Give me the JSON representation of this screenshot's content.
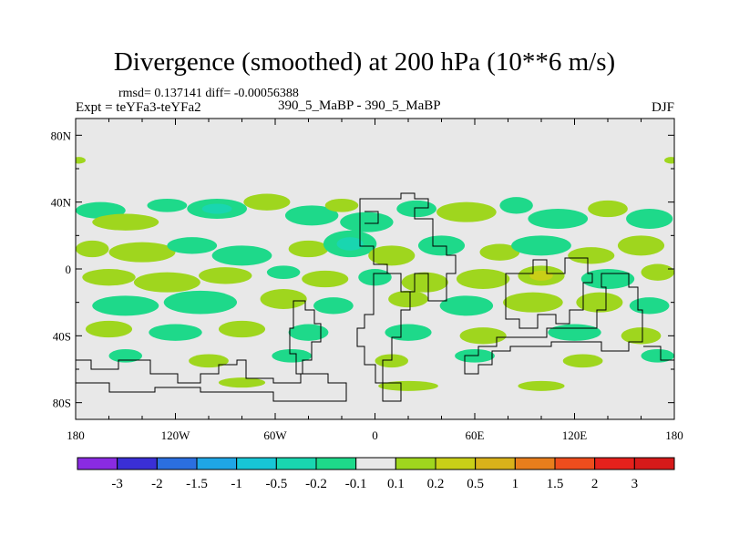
{
  "chart_data": {
    "type": "heatmap",
    "title": "Divergence (smoothed) at 200 hPa (10**6 m/s)",
    "stats": "rmsd= 0.137141 diff= -0.00056388",
    "expt": "Expt = teYFa3-teYFa2",
    "cases": "390_5_MaBP - 390_5_MaBP",
    "season": "DJF",
    "x_axis": {
      "range": [
        -180,
        180
      ],
      "ticks": [
        -180,
        -120,
        -60,
        0,
        60,
        120,
        180
      ],
      "tick_labels": [
        "180",
        "120W",
        "60W",
        "0",
        "60E",
        "120E",
        "180"
      ]
    },
    "y_axis": {
      "range": [
        -90,
        90
      ],
      "ticks": [
        80,
        40,
        0,
        -40,
        -80
      ],
      "tick_labels": [
        "80N",
        "40N",
        "0",
        "40S",
        "80S"
      ]
    },
    "colorbar": {
      "labels": [
        "-3",
        "-2",
        "-1.5",
        "-1",
        "-0.5",
        "-0.2",
        "-0.1",
        "0.1",
        "0.2",
        "0.5",
        "1",
        "1.5",
        "2",
        "3"
      ],
      "colors": [
        "#8a2be2",
        "#3a2fd6",
        "#2b6fe0",
        "#1fa6e6",
        "#17c6d6",
        "#19d6b0",
        "#1ed98a",
        "#e8e8e8",
        "#9fd61e",
        "#c9cf17",
        "#d9b21a",
        "#e87e1c",
        "#ee4d1d",
        "#e5211c",
        "#d61a1a"
      ]
    },
    "field_blobs": [
      {
        "lon": -165,
        "lat": 35,
        "rx": 15,
        "ry": 5,
        "v": -0.3
      },
      {
        "lon": -150,
        "lat": 28,
        "rx": 20,
        "ry": 5,
        "v": 0.3
      },
      {
        "lon": -125,
        "lat": 38,
        "rx": 12,
        "ry": 4,
        "v": -0.3
      },
      {
        "lon": -95,
        "lat": 36,
        "rx": 18,
        "ry": 6,
        "v": -0.4
      },
      {
        "lon": -65,
        "lat": 40,
        "rx": 14,
        "ry": 5,
        "v": 0.3
      },
      {
        "lon": -38,
        "lat": 32,
        "rx": 16,
        "ry": 6,
        "v": -0.3
      },
      {
        "lon": -20,
        "lat": 38,
        "rx": 10,
        "ry": 4,
        "v": 0.3
      },
      {
        "lon": -5,
        "lat": 28,
        "rx": 16,
        "ry": 6,
        "v": -0.3
      },
      {
        "lon": 25,
        "lat": 36,
        "rx": 12,
        "ry": 5,
        "v": -0.3
      },
      {
        "lon": 55,
        "lat": 34,
        "rx": 18,
        "ry": 6,
        "v": 0.3
      },
      {
        "lon": 85,
        "lat": 38,
        "rx": 10,
        "ry": 5,
        "v": -0.3
      },
      {
        "lon": 110,
        "lat": 30,
        "rx": 18,
        "ry": 6,
        "v": -0.3
      },
      {
        "lon": 140,
        "lat": 36,
        "rx": 12,
        "ry": 5,
        "v": 0.3
      },
      {
        "lon": 165,
        "lat": 30,
        "rx": 14,
        "ry": 6,
        "v": -0.3
      },
      {
        "lon": -170,
        "lat": 12,
        "rx": 10,
        "ry": 5,
        "v": 0.3
      },
      {
        "lon": -140,
        "lat": 10,
        "rx": 20,
        "ry": 6,
        "v": 0.3
      },
      {
        "lon": -110,
        "lat": 14,
        "rx": 15,
        "ry": 5,
        "v": -0.3
      },
      {
        "lon": -80,
        "lat": 8,
        "rx": 18,
        "ry": 6,
        "v": -0.3
      },
      {
        "lon": -40,
        "lat": 12,
        "rx": 12,
        "ry": 5,
        "v": 0.3
      },
      {
        "lon": -15,
        "lat": 15,
        "rx": 16,
        "ry": 8,
        "v": -0.4
      },
      {
        "lon": 10,
        "lat": 8,
        "rx": 14,
        "ry": 6,
        "v": 0.3
      },
      {
        "lon": 40,
        "lat": 14,
        "rx": 14,
        "ry": 6,
        "v": -0.3
      },
      {
        "lon": 75,
        "lat": 10,
        "rx": 12,
        "ry": 5,
        "v": 0.3
      },
      {
        "lon": 100,
        "lat": 14,
        "rx": 18,
        "ry": 6,
        "v": -0.3
      },
      {
        "lon": 130,
        "lat": 8,
        "rx": 14,
        "ry": 5,
        "v": 0.3
      },
      {
        "lon": 160,
        "lat": 14,
        "rx": 14,
        "ry": 6,
        "v": 0.3
      },
      {
        "lon": -160,
        "lat": -5,
        "rx": 16,
        "ry": 5,
        "v": 0.3
      },
      {
        "lon": -125,
        "lat": -8,
        "rx": 20,
        "ry": 6,
        "v": 0.3
      },
      {
        "lon": -90,
        "lat": -4,
        "rx": 16,
        "ry": 5,
        "v": 0.3
      },
      {
        "lon": -55,
        "lat": -2,
        "rx": 10,
        "ry": 4,
        "v": -0.3
      },
      {
        "lon": -30,
        "lat": -6,
        "rx": 14,
        "ry": 5,
        "v": 0.3
      },
      {
        "lon": 0,
        "lat": -5,
        "rx": 10,
        "ry": 5,
        "v": -0.3
      },
      {
        "lon": 30,
        "lat": -8,
        "rx": 14,
        "ry": 6,
        "v": 0.3
      },
      {
        "lon": 65,
        "lat": -6,
        "rx": 16,
        "ry": 6,
        "v": 0.3
      },
      {
        "lon": 100,
        "lat": -4,
        "rx": 14,
        "ry": 6,
        "v": 0.4
      },
      {
        "lon": 140,
        "lat": -6,
        "rx": 16,
        "ry": 6,
        "v": -0.3
      },
      {
        "lon": 170,
        "lat": -2,
        "rx": 10,
        "ry": 5,
        "v": 0.3
      },
      {
        "lon": -150,
        "lat": -22,
        "rx": 20,
        "ry": 6,
        "v": -0.3
      },
      {
        "lon": -105,
        "lat": -20,
        "rx": 22,
        "ry": 7,
        "v": -0.3
      },
      {
        "lon": -55,
        "lat": -18,
        "rx": 14,
        "ry": 6,
        "v": 0.3
      },
      {
        "lon": -25,
        "lat": -22,
        "rx": 12,
        "ry": 5,
        "v": -0.3
      },
      {
        "lon": 20,
        "lat": -18,
        "rx": 12,
        "ry": 5,
        "v": 0.3
      },
      {
        "lon": 55,
        "lat": -22,
        "rx": 16,
        "ry": 6,
        "v": -0.3
      },
      {
        "lon": 95,
        "lat": -20,
        "rx": 18,
        "ry": 6,
        "v": 0.3
      },
      {
        "lon": 135,
        "lat": -20,
        "rx": 14,
        "ry": 6,
        "v": 0.3
      },
      {
        "lon": 165,
        "lat": -22,
        "rx": 12,
        "ry": 5,
        "v": -0.3
      },
      {
        "lon": -160,
        "lat": -36,
        "rx": 14,
        "ry": 5,
        "v": 0.3
      },
      {
        "lon": -120,
        "lat": -38,
        "rx": 16,
        "ry": 5,
        "v": -0.3
      },
      {
        "lon": -80,
        "lat": -36,
        "rx": 14,
        "ry": 5,
        "v": 0.3
      },
      {
        "lon": -40,
        "lat": -38,
        "rx": 12,
        "ry": 5,
        "v": -0.3
      },
      {
        "lon": 20,
        "lat": -38,
        "rx": 14,
        "ry": 5,
        "v": -0.3
      },
      {
        "lon": 65,
        "lat": -40,
        "rx": 14,
        "ry": 5,
        "v": 0.3
      },
      {
        "lon": 120,
        "lat": -38,
        "rx": 16,
        "ry": 5,
        "v": -0.3
      },
      {
        "lon": 160,
        "lat": -40,
        "rx": 12,
        "ry": 5,
        "v": 0.3
      },
      {
        "lon": -150,
        "lat": -52,
        "rx": 10,
        "ry": 4,
        "v": -0.3
      },
      {
        "lon": -100,
        "lat": -55,
        "rx": 12,
        "ry": 4,
        "v": 0.3
      },
      {
        "lon": -50,
        "lat": -52,
        "rx": 12,
        "ry": 4,
        "v": -0.3
      },
      {
        "lon": 10,
        "lat": -55,
        "rx": 10,
        "ry": 4,
        "v": 0.3
      },
      {
        "lon": 60,
        "lat": -52,
        "rx": 12,
        "ry": 4,
        "v": -0.3
      },
      {
        "lon": 125,
        "lat": -55,
        "rx": 12,
        "ry": 4,
        "v": 0.3
      },
      {
        "lon": 170,
        "lat": -52,
        "rx": 10,
        "ry": 4,
        "v": -0.3
      },
      {
        "lon": -80,
        "lat": -68,
        "rx": 14,
        "ry": 3,
        "v": 0.3
      },
      {
        "lon": 20,
        "lat": -70,
        "rx": 18,
        "ry": 3,
        "v": 0.3
      },
      {
        "lon": 100,
        "lat": -70,
        "rx": 14,
        "ry": 3,
        "v": 0.3
      },
      {
        "lon": -178,
        "lat": 65,
        "rx": 4,
        "ry": 2,
        "v": 0.3
      },
      {
        "lon": 178,
        "lat": 65,
        "rx": 4,
        "ry": 2,
        "v": 0.3
      }
    ]
  }
}
